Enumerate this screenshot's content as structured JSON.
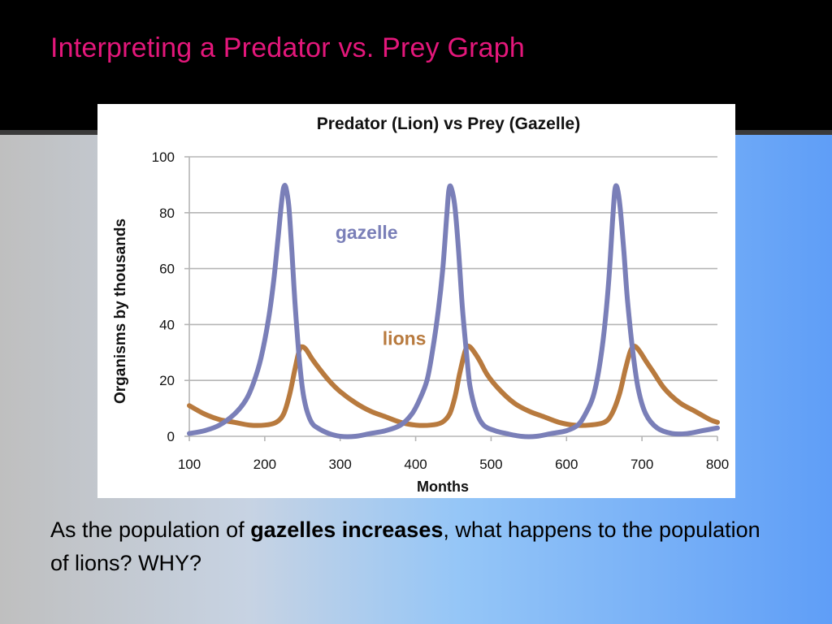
{
  "slide": {
    "title": "Interpreting a Predator vs. Prey Graph",
    "question_before": "As the population of ",
    "question_bold": "gazelles increases",
    "question_after": ", what happens to the population of lions?  WHY?"
  },
  "colors": {
    "title": "#e4177b",
    "gazelle": "#7a7fb8",
    "lions": "#b87a3e",
    "gridline": "#b5b5b5"
  },
  "chart_data": {
    "type": "line",
    "title": "Predator (Lion) vs Prey (Gazelle)",
    "xlabel": "Months",
    "ylabel": "Organisms by thousands",
    "xlim": [
      100,
      800
    ],
    "ylim": [
      0,
      100
    ],
    "xticks": [
      100,
      200,
      300,
      400,
      500,
      600,
      700,
      800
    ],
    "yticks": [
      0,
      20,
      40,
      60,
      80,
      100
    ],
    "grid": true,
    "series": [
      {
        "name": "gazelle",
        "color": "#7a7fb8",
        "x": [
          100,
          120,
          140,
          160,
          175,
          185,
          195,
          205,
          212,
          218,
          222,
          225,
          228,
          232,
          236,
          240,
          245,
          250,
          255,
          262,
          270,
          285,
          300,
          320,
          340,
          360,
          380,
          395,
          405,
          415,
          422,
          430,
          436,
          441,
          444,
          447,
          452,
          457,
          462,
          468,
          472,
          480,
          490,
          505,
          520,
          540,
          560,
          580,
          600,
          615,
          625,
          635,
          643,
          650,
          656,
          661,
          664,
          667,
          671,
          676,
          681,
          688,
          695,
          705,
          720,
          740,
          760,
          780,
          800
        ],
        "y": [
          1,
          2,
          4,
          8,
          13,
          19,
          28,
          42,
          56,
          72,
          83,
          89,
          89,
          82,
          66,
          48,
          30,
          17,
          10,
          5,
          3,
          1,
          0,
          0,
          1,
          2,
          4,
          8,
          13,
          20,
          30,
          45,
          60,
          78,
          88,
          89,
          82,
          66,
          46,
          28,
          18,
          9,
          4,
          2,
          1,
          0,
          0,
          1,
          2,
          4,
          8,
          14,
          24,
          38,
          56,
          77,
          88,
          89,
          82,
          66,
          48,
          30,
          17,
          8,
          3,
          1,
          1,
          2,
          3
        ]
      },
      {
        "name": "lions",
        "color": "#b87a3e",
        "x": [
          100,
          120,
          140,
          160,
          180,
          200,
          215,
          225,
          233,
          240,
          246,
          250,
          255,
          262,
          270,
          285,
          300,
          320,
          340,
          360,
          380,
          400,
          420,
          435,
          445,
          452,
          458,
          464,
          468,
          472,
          478,
          485,
          495,
          510,
          530,
          550,
          570,
          590,
          610,
          630,
          650,
          660,
          670,
          678,
          684,
          688,
          692,
          698,
          705,
          715,
          730,
          750,
          770,
          790,
          800
        ],
        "y": [
          11,
          8,
          6,
          5,
          4,
          4,
          5,
          8,
          15,
          24,
          31,
          32,
          31,
          28,
          25,
          20,
          16,
          12,
          9,
          7,
          5,
          4,
          4,
          5,
          8,
          14,
          22,
          29,
          32,
          32,
          30,
          27,
          22,
          17,
          12,
          9,
          7,
          5,
          4,
          4,
          5,
          8,
          15,
          24,
          30,
          32,
          32,
          30,
          27,
          23,
          17,
          12,
          9,
          6,
          5
        ]
      }
    ],
    "annotations": [
      {
        "text": "gazelle",
        "x": 335,
        "y": 73,
        "color": "#7a7fb8"
      },
      {
        "text": "lions",
        "x": 385,
        "y": 35,
        "color": "#b87a3e"
      }
    ]
  }
}
